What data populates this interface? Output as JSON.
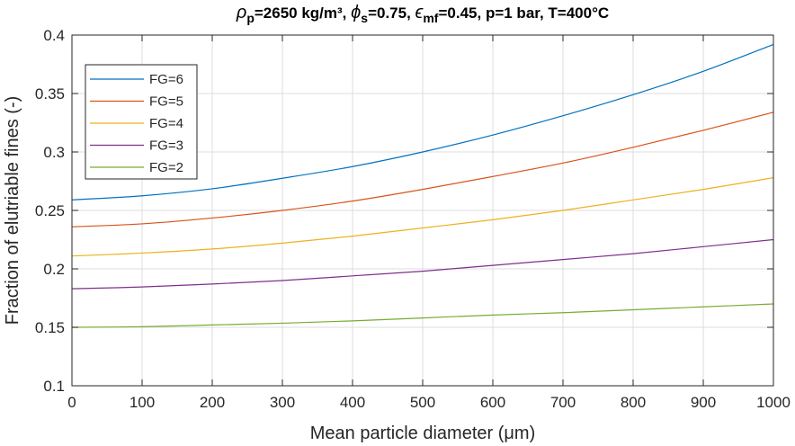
{
  "chart_data": {
    "type": "line",
    "title": {
      "rho_symbol": "ρ",
      "rho_sub": "p",
      "rho_rest": "=2650 kg/m³, ",
      "phi_symbol": "ϕ",
      "phi_sub": "s",
      "phi_rest": "=0.75, ",
      "eps_symbol": "ϵ",
      "eps_sub": "mf",
      "eps_rest": "=0.45, p=1 bar, T=400°C"
    },
    "xlabel": "Mean particle diameter (μm)",
    "ylabel": "Fraction of elutriable fines (-)",
    "xlim": [
      0,
      1000
    ],
    "ylim": [
      0.1,
      0.4
    ],
    "xticks": [
      0,
      100,
      200,
      300,
      400,
      500,
      600,
      700,
      800,
      900,
      1000
    ],
    "xtick_labels": [
      "0",
      "100",
      "200",
      "300",
      "400",
      "500",
      "600",
      "700",
      "800",
      "900",
      "1000"
    ],
    "yticks": [
      0.1,
      0.15,
      0.2,
      0.25,
      0.3,
      0.35,
      0.4
    ],
    "ytick_labels": [
      "0.1",
      "0.15",
      "0.2",
      "0.25",
      "0.3",
      "0.35",
      "0.4"
    ],
    "grid": true,
    "legend_position": "top-left",
    "x": [
      0,
      100,
      200,
      300,
      400,
      500,
      600,
      700,
      800,
      900,
      1000
    ],
    "series": [
      {
        "name": "FG=6",
        "color": "#0072BD",
        "values": [
          0.259,
          0.2625,
          0.2685,
          0.2775,
          0.2875,
          0.3,
          0.3145,
          0.331,
          0.349,
          0.369,
          0.392
        ]
      },
      {
        "name": "FG=5",
        "color": "#D95319",
        "values": [
          0.236,
          0.2385,
          0.2435,
          0.25,
          0.258,
          0.268,
          0.279,
          0.2905,
          0.304,
          0.3185,
          0.334
        ]
      },
      {
        "name": "FG=4",
        "color": "#EDB120",
        "values": [
          0.211,
          0.2135,
          0.217,
          0.222,
          0.228,
          0.235,
          0.242,
          0.25,
          0.259,
          0.268,
          0.278
        ]
      },
      {
        "name": "FG=3",
        "color": "#7E2F8E",
        "values": [
          0.183,
          0.1845,
          0.187,
          0.19,
          0.194,
          0.198,
          0.203,
          0.208,
          0.213,
          0.219,
          0.225
        ]
      },
      {
        "name": "FG=2",
        "color": "#77AC30",
        "values": [
          0.15,
          0.1505,
          0.152,
          0.1535,
          0.1555,
          0.158,
          0.1605,
          0.1625,
          0.165,
          0.1675,
          0.17
        ]
      }
    ]
  }
}
